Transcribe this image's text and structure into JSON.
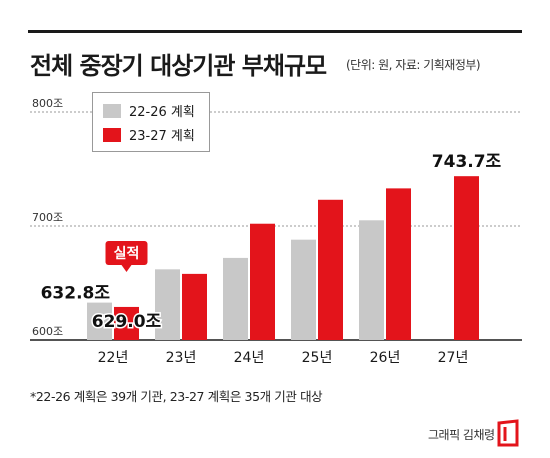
{
  "header": {
    "title": "전체 중장기 대상기관 부채규모",
    "unit_source": "(단위: 원, 자료: 기획재정부)"
  },
  "legend": {
    "items": [
      {
        "label": "22-26 계획",
        "color": "#c8c8c8"
      },
      {
        "label": "23-27 계획",
        "color": "#e3141b"
      }
    ]
  },
  "chart_data": {
    "type": "bar",
    "categories": [
      "22년",
      "23년",
      "24년",
      "25년",
      "26년",
      "27년"
    ],
    "series": [
      {
        "name": "22-26 계획",
        "values": [
          632.8,
          662,
          672,
          688,
          705,
          null
        ],
        "color": "#c8c8c8"
      },
      {
        "name": "23-27 계획",
        "values": [
          629.0,
          658,
          702,
          723,
          733,
          743.7
        ],
        "color": "#e3141b"
      }
    ],
    "ylim": [
      600,
      800
    ],
    "yticks": [
      {
        "value": 600,
        "label": "600조"
      },
      {
        "value": 700,
        "label": "700조"
      },
      {
        "value": 800,
        "label": "800조"
      }
    ],
    "data_labels": [
      {
        "series": 0,
        "index": 0,
        "text": "632.8조"
      },
      {
        "series": 1,
        "index": 0,
        "text": "629.0조"
      },
      {
        "series": 1,
        "index": 5,
        "text": "743.7조"
      }
    ],
    "annotation": {
      "text": "실적",
      "index": 0
    }
  },
  "footnote": "*22-26 계획은 39개 기관, 23-27 계획은 35개 기관 대상",
  "credit": "그래픽 김채령"
}
